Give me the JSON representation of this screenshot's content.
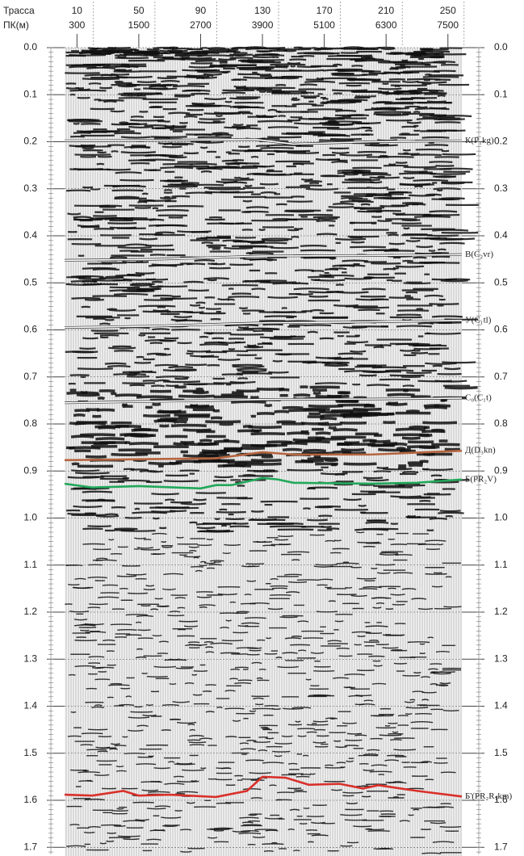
{
  "chart_data": {
    "type": "seismic",
    "x_label": "Трасса",
    "x2_label": "ПК(м)",
    "xlim": [
      2,
      259
    ],
    "xticks": [
      10,
      50,
      90,
      130,
      170,
      210,
      250
    ],
    "x2ticks": [
      300,
      1500,
      2700,
      3900,
      5100,
      6300,
      7500
    ],
    "ylim": [
      0,
      1.715
    ],
    "yticks": [
      {
        "value": 0,
        "label": "0.0"
      },
      0.1,
      0.2,
      0.3,
      0.4,
      0.5,
      0.6,
      0.7,
      0.8,
      0.9,
      {
        "value": 1,
        "label": "1.0"
      },
      1.1,
      1.2,
      1.3,
      1.4,
      1.5,
      {
        "value": 1.6,
        "label": "1.6"
      },
      1.7
    ],
    "series": [
      {
        "name": "К(P₁kg)",
        "color": "#ffffff",
        "x": [
          2,
          60,
          125,
          150,
          200,
          259
        ],
        "values": [
          0.198,
          0.197,
          0.195,
          0.205,
          0.2,
          0.198
        ]
      },
      {
        "name": "В(C₂vr)",
        "color": "#ffffff",
        "x": [
          2,
          60,
          130,
          200,
          259
        ],
        "values": [
          0.452,
          0.45,
          0.443,
          0.442,
          0.44
        ]
      },
      {
        "name": "У(C₁tl)",
        "color": "#ffffff",
        "x": [
          2,
          60,
          130,
          200,
          259
        ],
        "values": [
          0.595,
          0.592,
          0.585,
          0.583,
          0.58
        ]
      },
      {
        "name": "C₀(C₁t)",
        "color": "#ffffff",
        "x": [
          2,
          60,
          130,
          200,
          259
        ],
        "values": [
          0.755,
          0.752,
          0.748,
          0.747,
          0.745
        ]
      },
      {
        "name": "Д(D₃kn)",
        "color": "#b5653f",
        "x": [
          2,
          50,
          100,
          130,
          150,
          200,
          259
        ],
        "values": [
          0.877,
          0.875,
          0.873,
          0.86,
          0.865,
          0.865,
          0.857
        ]
      },
      {
        "name": "Б(PR₂V)",
        "color": "#22a85a",
        "x": [
          2,
          20,
          50,
          90,
          100,
          110,
          130,
          140,
          150,
          200,
          230,
          259
        ],
        "values": [
          0.927,
          0.935,
          0.932,
          0.937,
          0.93,
          0.93,
          0.915,
          0.918,
          0.925,
          0.927,
          0.925,
          0.918
        ]
      },
      {
        "name": "Б'(PR₂R₁km)",
        "color": "#d9302a",
        "x": [
          2,
          20,
          40,
          50,
          70,
          100,
          120,
          130,
          145,
          160,
          180,
          195,
          205,
          230,
          259
        ],
        "values": [
          1.588,
          1.59,
          1.58,
          1.59,
          1.588,
          1.593,
          1.58,
          1.55,
          1.552,
          1.567,
          1.565,
          1.575,
          1.568,
          1.58,
          1.592
        ]
      }
    ]
  }
}
